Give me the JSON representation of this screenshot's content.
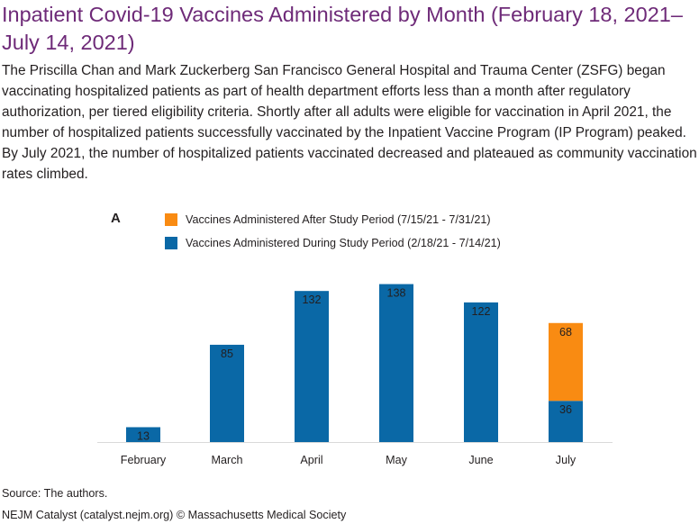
{
  "header": {
    "title": "Inpatient Covid-19 Vaccines Administered by Month (February 18, 2021–July 14, 2021)",
    "description": "The Priscilla Chan and Mark Zuckerberg San Francisco General Hospital and Trauma Center (ZSFG) began vaccinating hospitalized patients as part of health department efforts less than a month after regulatory authorization, per tiered eligibility criteria. Shortly after all adults were eligible for vaccination in April 2021, the number of hospitalized patients successfully vaccinated by the Inpatient Vaccine Program (IP Program) peaked. By July 2021, the number of hospitalized patients vaccinated decreased and plateaued as community vaccination rates climbed."
  },
  "panel_label": "A",
  "colors": {
    "during": "#0a68a6",
    "after": "#f98b12",
    "title": "#6e2a78"
  },
  "chart_data": {
    "type": "bar",
    "stacked": true,
    "categories": [
      "February",
      "March",
      "April",
      "May",
      "June",
      "July"
    ],
    "series": [
      {
        "name": "Vaccines Administered During Study Period (2/18/21 - 7/14/21)",
        "color": "#0a68a6",
        "values": [
          13,
          85,
          132,
          138,
          122,
          36
        ]
      },
      {
        "name": "Vaccines Administered After Study Period (7/15/21 - 7/31/21)",
        "color": "#f98b12",
        "values": [
          0,
          0,
          0,
          0,
          0,
          68
        ]
      }
    ],
    "legend_order": [
      1,
      0
    ],
    "ylim": [
      0,
      140
    ],
    "grid": false,
    "legend": "top-left"
  },
  "footer": {
    "source": "Source: The authors.",
    "credit": "NEJM Catalyst (catalyst.nejm.org) © Massachusetts Medical Society"
  }
}
